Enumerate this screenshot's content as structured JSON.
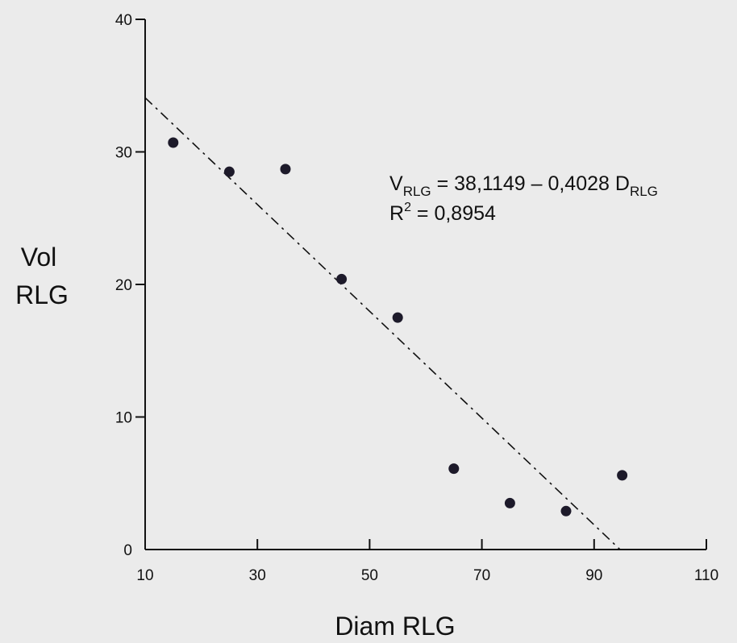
{
  "chart_data": {
    "type": "scatter",
    "xlabel": "Diam RLG",
    "ylabel_lines": [
      "Vol",
      "RLG"
    ],
    "xlim": [
      10,
      110
    ],
    "ylim": [
      0,
      40
    ],
    "x_ticks": [
      "10",
      "30",
      "50",
      "70",
      "90",
      "110"
    ],
    "y_ticks": [
      "0",
      "10",
      "20",
      "30",
      "40"
    ],
    "points": [
      {
        "x": 15,
        "y": 30.7
      },
      {
        "x": 25,
        "y": 28.5
      },
      {
        "x": 35,
        "y": 28.7
      },
      {
        "x": 45,
        "y": 20.4
      },
      {
        "x": 55,
        "y": 17.5
      },
      {
        "x": 65,
        "y": 6.1
      },
      {
        "x": 75,
        "y": 3.5
      },
      {
        "x": 85,
        "y": 2.9
      },
      {
        "x": 95,
        "y": 5.6
      }
    ],
    "trendline": {
      "style": "dash-dot",
      "intercept": 38.1149,
      "slope": -0.4028
    },
    "equation": {
      "v_main": "V",
      "v_sub": "RLG",
      "middle": " = 38,1149 – 0,4028 ",
      "d_main": "D",
      "d_sub": "RLG",
      "r_main": "R",
      "r_sup": "2",
      "r_rest": " = 0,8954"
    },
    "colors": {
      "background": "#ebebeb",
      "ink": "#111111",
      "marker": "#1d1a2a"
    }
  }
}
